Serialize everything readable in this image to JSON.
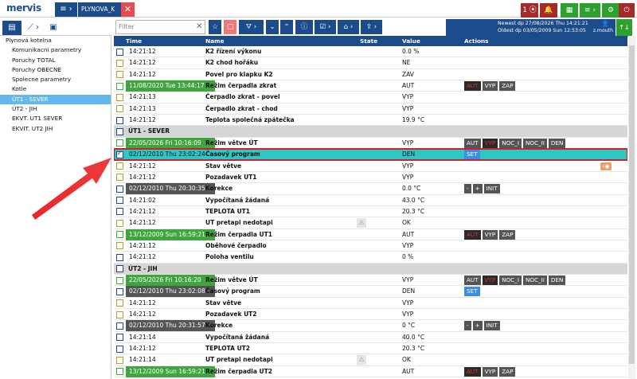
{
  "app": {
    "logo": "mervis",
    "tab_label": "PLYNOVA_K",
    "menu_icon": "menu-icon"
  },
  "top_right": {
    "buttons": [
      {
        "label": "1 ⦿",
        "color": "#a52a2a",
        "icon": "alarm-count-icon"
      },
      {
        "label": "🔔",
        "color": "#a52a2a",
        "icon": "bell-icon"
      },
      {
        "label": "▦",
        "color": "#2ea02e",
        "icon": "doc-icon"
      },
      {
        "label": "≡ ›",
        "color": "#2ea02e",
        "icon": "list-icon"
      },
      {
        "label": "⚙",
        "color": "#2ea02e",
        "icon": "settings-icon"
      },
      {
        "label": "⏻",
        "color": "#a52a2a",
        "icon": "power-icon"
      }
    ]
  },
  "toolbar": {
    "filter_placeholder": "Filter",
    "newest": "Newest dp 27/08/2026 Thu 14:21:21",
    "oldest": "Oldest dp  03/05/2009 Sun 12:53:05",
    "user": "z.mouth"
  },
  "sidebar": {
    "items": [
      {
        "label": "Plynová kotelna",
        "root": true
      },
      {
        "label": "Komunikacni parametry"
      },
      {
        "label": "Poruchy TOTAL"
      },
      {
        "label": "Poruchy OBECNE"
      },
      {
        "label": "Spolecne parametry"
      },
      {
        "label": "Kotle"
      },
      {
        "label": "ÚT1 - SEVER",
        "selected": true
      },
      {
        "label": "ÚT2 - JIH"
      },
      {
        "label": "EKVT. UT1 SEVER"
      },
      {
        "label": "EKVIT. UT2 JIH"
      }
    ]
  },
  "table": {
    "headers": {
      "time": "Time",
      "name": "Name",
      "state": "State",
      "value": "Value",
      "actions": "Actions"
    },
    "rows": [
      {
        "chk": "blue",
        "time": "14:21:12",
        "name": "K2 řízení výkonu",
        "value": "0.0 %"
      },
      {
        "chk": "yellow",
        "time": "14:21:12",
        "name": "K2 chod hořáku",
        "value": "NE"
      },
      {
        "chk": "yellow",
        "time": "14:21:12",
        "name": "Povel pro klapku K2",
        "value": "ZAV"
      },
      {
        "chk": "green",
        "time": "11/08/2020 Tue 13:44:17",
        "ts": "dark",
        "name": "Režim čerpadla zkrat",
        "value": "AUT",
        "acts": [
          "AUT*",
          "VYP",
          "ZAP"
        ]
      },
      {
        "chk": "yellow",
        "time": "14:21:13",
        "name": "Čerpadlo zkrat - povel",
        "value": "VYP"
      },
      {
        "chk": "yellow",
        "time": "14:21:13",
        "name": "Čerpadlo zkrat - chod",
        "value": "VYP"
      },
      {
        "chk": "blue",
        "time": "14:21:12",
        "name": "Teplota společná zpátečka",
        "value": "19.9 °C"
      },
      {
        "section": true,
        "name": "ÚT1 - SEVER"
      },
      {
        "chk": "green",
        "time": "22/05/2026 Fri 10:16:09",
        "ts": "dark",
        "name": "Režim větve ÚT",
        "value": "VYP",
        "acts": [
          "AUT",
          "VYP*",
          "NOC_I",
          "NOC_II",
          "DEN"
        ]
      },
      {
        "chk": "blue",
        "checked": true,
        "selected": true,
        "time": "02/12/2010 Thu 23:02:24",
        "name": "Časový program",
        "value": "DEN",
        "acts": [
          "SET#"
        ]
      },
      {
        "chk": "yellow",
        "time": "14:21:12",
        "name": "Stav větve",
        "value": "VYP",
        "lock": true
      },
      {
        "chk": "yellow",
        "time": "14:21:12",
        "name": "Pozadavek UT1",
        "value": "VYP"
      },
      {
        "chk": "blue",
        "time": "02/12/2010 Thu 20:30:35",
        "ts": "dark",
        "name": "Korekce",
        "value": "0.0 °C",
        "acts": [
          "-",
          "+",
          "INIT"
        ]
      },
      {
        "chk": "blue",
        "time": "14:21:02",
        "name": "Vypočítaná žádaná",
        "value": "43.0 °C"
      },
      {
        "chk": "blue",
        "time": "14:21:12",
        "name": "TEPLOTA UT1",
        "value": "20.3 °C"
      },
      {
        "chk": "yellow",
        "time": "14:21:12",
        "name": "UT pretapi nedotapi",
        "value": "OK",
        "warn": true
      },
      {
        "chk": "green",
        "time": "13/12/2009 Sun 16:59:21",
        "ts": "dark",
        "name": "Režim čerpadla UT1",
        "value": "AUT",
        "acts": [
          "AUT*",
          "VYP",
          "ZAP"
        ]
      },
      {
        "chk": "yellow",
        "time": "14:21:12",
        "name": "Oběhové čerpadlo",
        "value": "VYP"
      },
      {
        "chk": "blue",
        "time": "14:21:12",
        "name": "Poloha ventilu",
        "value": "0 %"
      },
      {
        "section": true,
        "name": "ÚT2 - JIH"
      },
      {
        "chk": "green",
        "time": "22/05/2026 Fri 10:16:20",
        "ts": "dark",
        "name": "Režim větve ÚT",
        "value": "VYP",
        "acts": [
          "AUT",
          "VYP*",
          "NOC_I",
          "NOC_II",
          "DEN"
        ]
      },
      {
        "chk": "blue",
        "time": "02/12/2010 Thu 23:02:08",
        "ts": "dark",
        "name": "Časový program",
        "value": "DEN",
        "acts": [
          "SET#"
        ]
      },
      {
        "chk": "yellow",
        "time": "14:21:12",
        "name": "Stav větve",
        "value": "VYP"
      },
      {
        "chk": "yellow",
        "time": "14:21:12",
        "name": "Pozadavek UT2",
        "value": "VYP"
      },
      {
        "chk": "blue",
        "time": "02/12/2010 Thu 20:31:57",
        "ts": "dark",
        "name": "Korekce",
        "value": "0 °C",
        "acts": [
          "-",
          "+",
          "INIT"
        ]
      },
      {
        "chk": "blue",
        "time": "14:21:14",
        "name": "Vypočítaná žádaná",
        "value": "40.0 °C"
      },
      {
        "chk": "blue",
        "time": "14:21:12",
        "name": "TEPLOTA UT2",
        "value": "20.3 °C"
      },
      {
        "chk": "yellow",
        "time": "14:21:14",
        "name": "UT pretapi nedotapi",
        "value": "OK",
        "warn": true
      },
      {
        "chk": "green",
        "time": "13/12/2009 Sun 16:59:21",
        "ts": "dark",
        "name": "Režim čerpadla UT2",
        "value": "AUT",
        "acts": [
          "AUT*",
          "VYP",
          "ZAP"
        ]
      }
    ]
  },
  "annotation": {
    "color": "#e8262a"
  }
}
